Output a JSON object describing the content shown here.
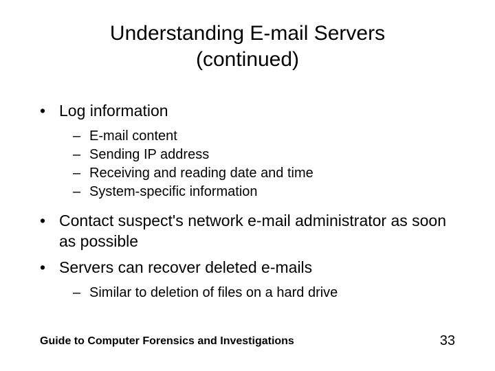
{
  "colors": {
    "background": "#ffffff",
    "text": "#000000"
  },
  "typography": {
    "title_fontsize": 30,
    "bullet_l1_fontsize": 23,
    "bullet_l2_fontsize": 20,
    "footer_fontsize": 16,
    "page_num_fontsize": 20,
    "font_family": "Arial"
  },
  "title": {
    "line1": "Understanding E-mail Servers",
    "line2": "(continued)"
  },
  "bullets": {
    "l1_marker": "•",
    "l2_marker": "–",
    "item1": "Log information",
    "item1_subs": {
      "a": "E-mail content",
      "b": "Sending IP address",
      "c": "Receiving and reading date and time",
      "d": "System-specific information"
    },
    "item2": "Contact suspect's network e-mail administrator as soon as possible",
    "item3": "Servers can recover deleted e-mails",
    "item3_subs": {
      "a": "Similar to deletion of files on a hard drive"
    }
  },
  "footer": {
    "text": "Guide to Computer Forensics and Investigations",
    "page": "33"
  }
}
